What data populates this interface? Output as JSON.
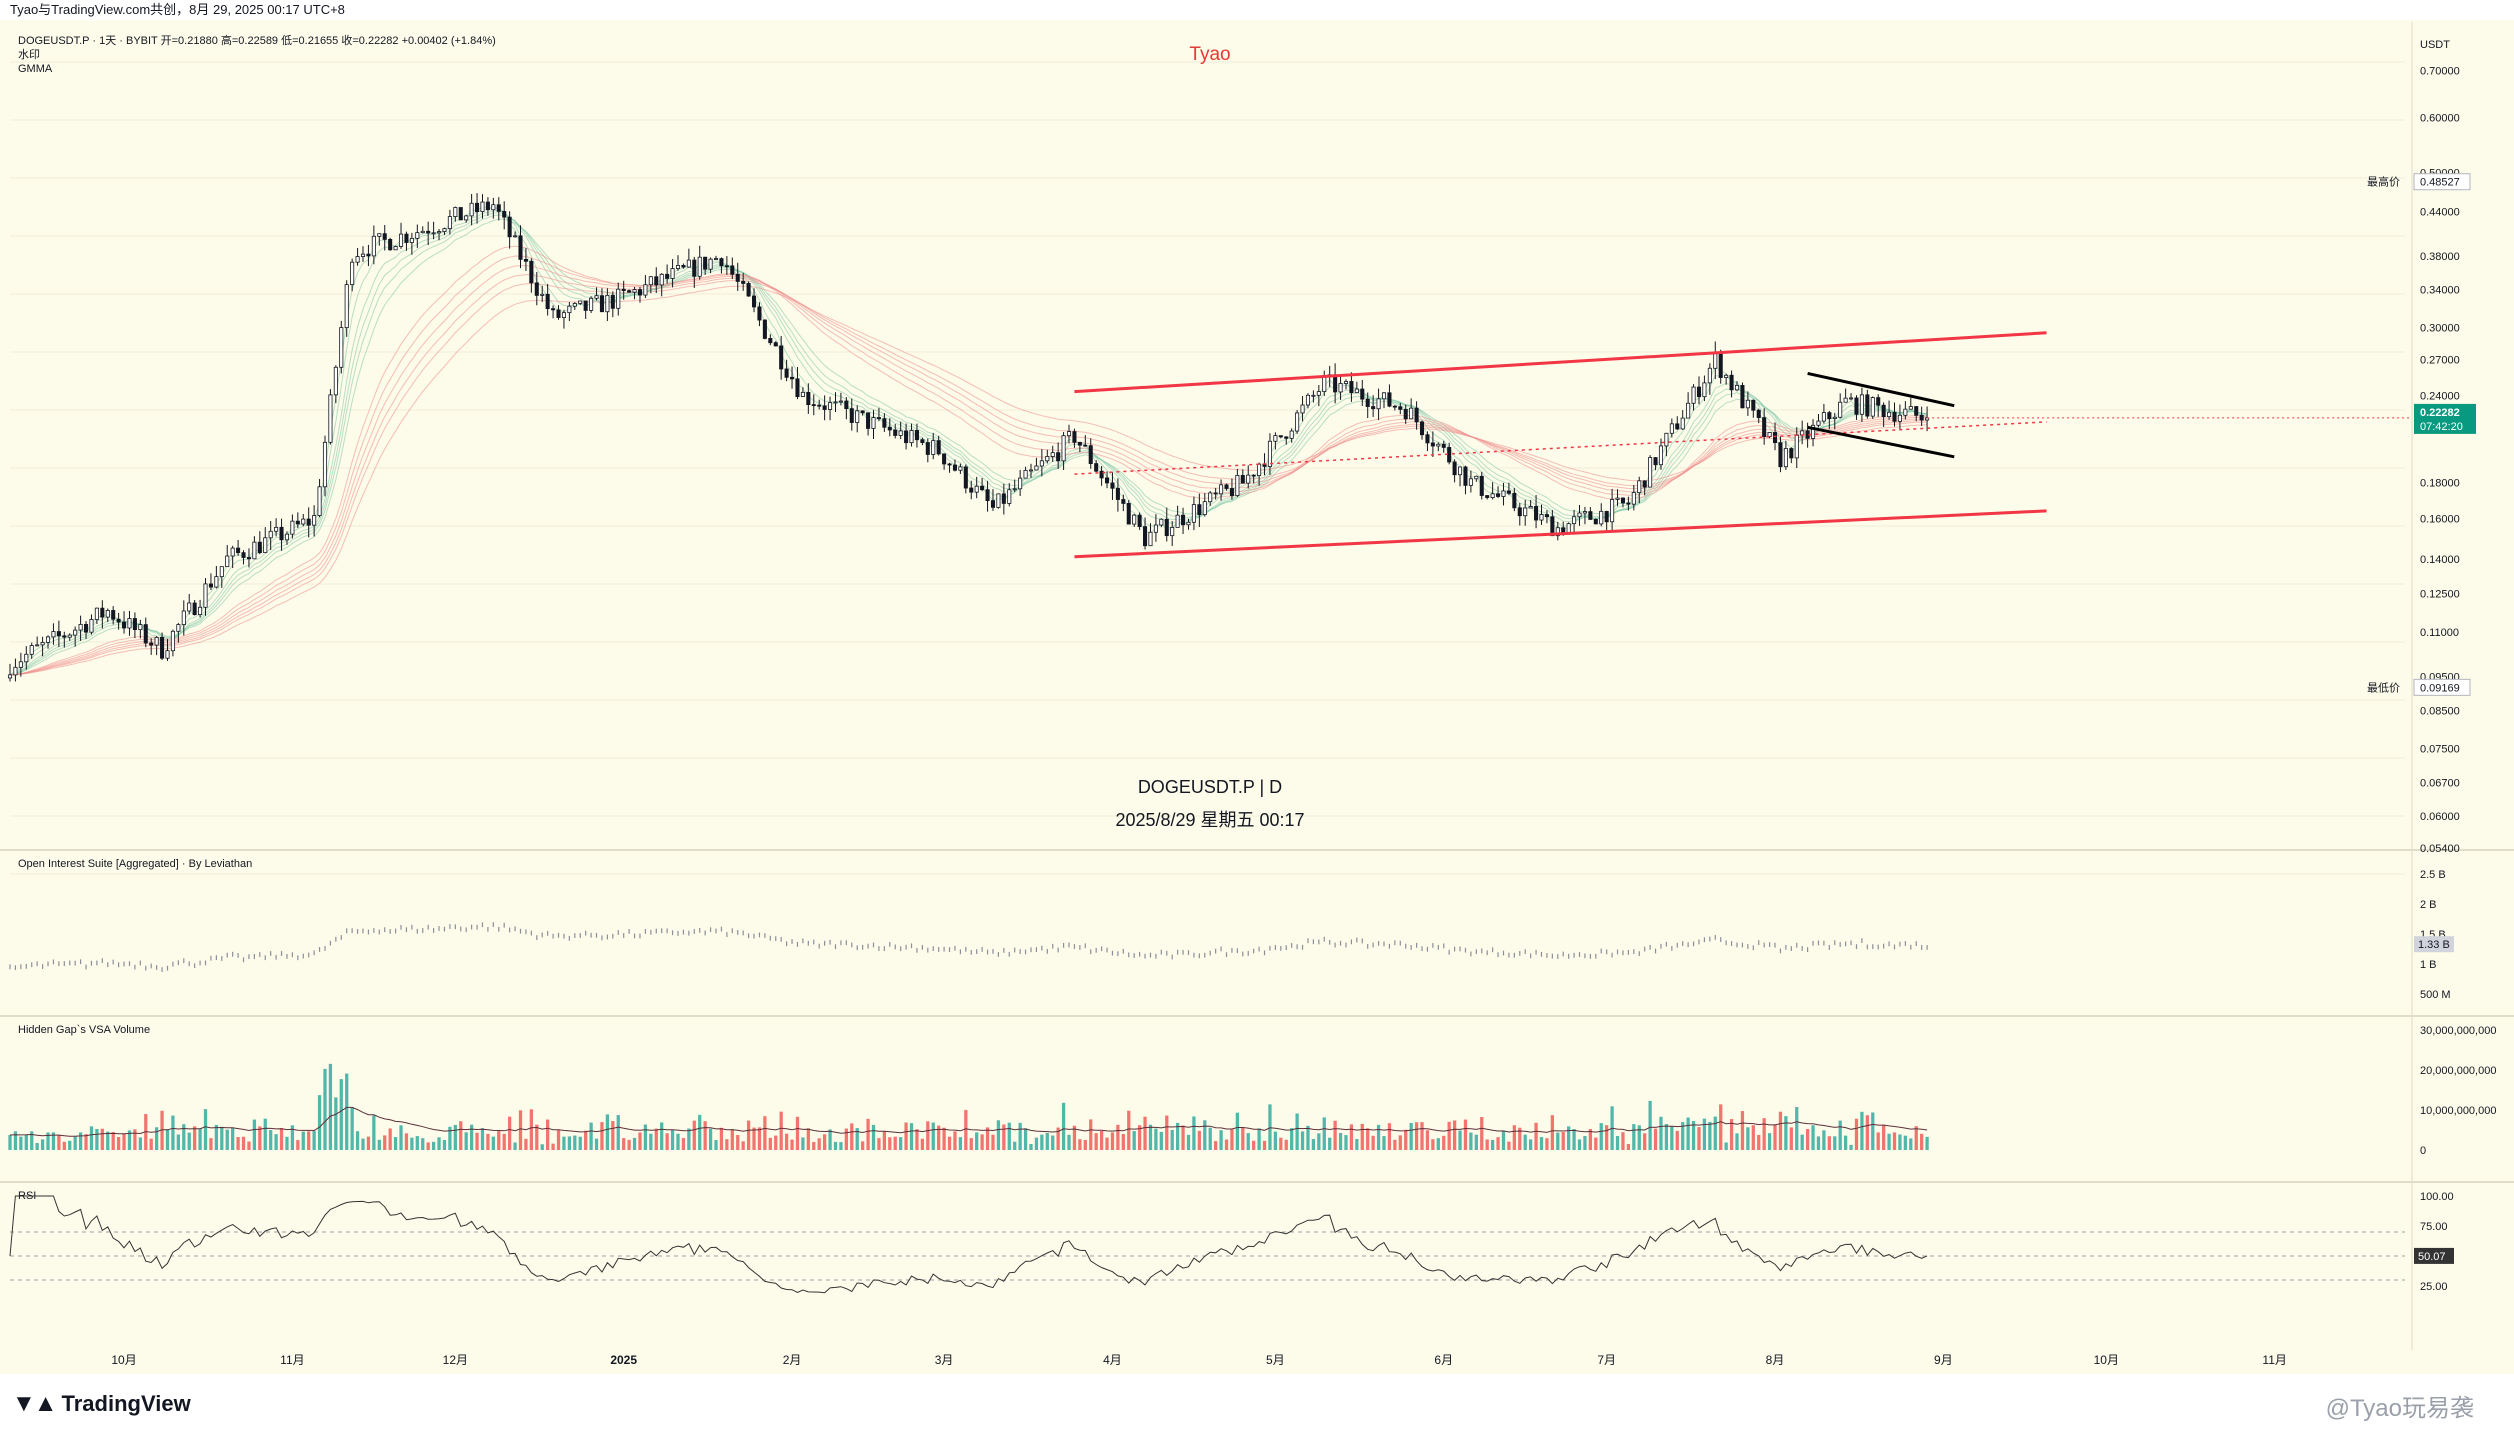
{
  "topbar": {
    "caption": "Tyao与TradingView.com共创，8月 29, 2025 00:17 UTC+8"
  },
  "header": {
    "symbol_line": "DOGEUSDT.P · 1天 · BYBIT  开=0.21880  高=0.22589  低=0.21655  收=0.22282  +0.00402 (+1.84%)",
    "indicator_1": "水印",
    "indicator_2": "GMMA",
    "author_tag": "Tyao"
  },
  "center_watermark": {
    "line1": "DOGEUSDT.P | D",
    "line2": "2025/8/29 星期五 00:17"
  },
  "price_axis": {
    "currency": "USDT",
    "ticks": [
      "0.70000",
      "0.60000",
      "0.50000",
      "0.44000",
      "0.38000",
      "0.34000",
      "0.30000",
      "0.27000",
      "0.24000",
      "0.18000",
      "0.16000",
      "0.14000",
      "0.12500",
      "0.11000",
      "0.09500",
      "0.08500",
      "0.07500",
      "0.06700",
      "0.06000",
      "0.05400"
    ],
    "high_label": "最高价",
    "high_value": "0.48527",
    "low_label": "最低价",
    "low_value": "0.09169",
    "last_price": "0.22282",
    "countdown": "07:42:20"
  },
  "time_axis": {
    "labels": [
      "10月",
      "11月",
      "12月",
      "2025",
      "2月",
      "3月",
      "4月",
      "5月",
      "6月",
      "7月",
      "8月",
      "9月",
      "10月",
      "11月"
    ]
  },
  "panes": {
    "oi": {
      "title": "Open Interest Suite [Aggregated] · By Leviathan",
      "ticks": [
        "2.5 B",
        "2 B",
        "1.5 B",
        "1 B",
        "500 M"
      ],
      "last": "1.33 B"
    },
    "vol": {
      "title": "Hidden Gap`s VSA Volume",
      "ticks": [
        "30,000,000,000",
        "20,000,000,000",
        "10,000,000,000",
        "0"
      ]
    },
    "rsi": {
      "title": "RSI",
      "ticks": [
        "100.00",
        "75.00",
        "25.00"
      ],
      "last": "50.07"
    }
  },
  "colors": {
    "up": "#26a69a",
    "down": "#ef5350",
    "channel": "#f23645",
    "accent": "#089981",
    "background": "#fdfbe9"
  },
  "footer": {
    "brand": "TradingView",
    "credit": "@Tyao玩易袭"
  },
  "chart_data": {
    "type": "candlestick",
    "symbol": "DOGEUSDT.P",
    "interval": "1D",
    "y_scale": "log",
    "ylim": [
      0.054,
      0.72
    ],
    "x_range": [
      "2024-09-10",
      "2025-11-25"
    ],
    "anchors": [
      {
        "date": "2024-09-10",
        "price": 0.099
      },
      {
        "date": "2024-09-28",
        "price": 0.118
      },
      {
        "date": "2024-10-08",
        "price": 0.104
      },
      {
        "date": "2024-10-20",
        "price": 0.14
      },
      {
        "date": "2024-10-31",
        "price": 0.153
      },
      {
        "date": "2024-11-05",
        "price": 0.16
      },
      {
        "date": "2024-11-12",
        "price": 0.385
      },
      {
        "date": "2024-11-23",
        "price": 0.41
      },
      {
        "date": "2024-12-08",
        "price": 0.45
      },
      {
        "date": "2024-12-19",
        "price": 0.31
      },
      {
        "date": "2024-12-31",
        "price": 0.33
      },
      {
        "date": "2025-01-19",
        "price": 0.38
      },
      {
        "date": "2025-02-03",
        "price": 0.24
      },
      {
        "date": "2025-02-28",
        "price": 0.2
      },
      {
        "date": "2025-03-10",
        "price": 0.165
      },
      {
        "date": "2025-03-25",
        "price": 0.21
      },
      {
        "date": "2025-04-07",
        "price": 0.15
      },
      {
        "date": "2025-04-25",
        "price": 0.18
      },
      {
        "date": "2025-05-10",
        "price": 0.25
      },
      {
        "date": "2025-05-25",
        "price": 0.23
      },
      {
        "date": "2025-06-06",
        "price": 0.18
      },
      {
        "date": "2025-06-22",
        "price": 0.155
      },
      {
        "date": "2025-07-05",
        "price": 0.168
      },
      {
        "date": "2025-07-21",
        "price": 0.27
      },
      {
        "date": "2025-08-02",
        "price": 0.195
      },
      {
        "date": "2025-08-14",
        "price": 0.235
      },
      {
        "date": "2025-08-29",
        "price": 0.2228
      }
    ],
    "channel": {
      "upper": [
        {
          "date": "2025-03-25",
          "price": 0.243
        },
        {
          "date": "2025-09-20",
          "price": 0.295
        }
      ],
      "lower": [
        {
          "date": "2025-03-25",
          "price": 0.141
        },
        {
          "date": "2025-09-20",
          "price": 0.164
        }
      ]
    },
    "flag": {
      "upper": [
        {
          "date": "2025-08-07",
          "price": 0.258
        },
        {
          "date": "2025-09-03",
          "price": 0.232
        }
      ],
      "lower": [
        {
          "date": "2025-08-07",
          "price": 0.216
        },
        {
          "date": "2025-09-03",
          "price": 0.196
        }
      ]
    },
    "series": [
      {
        "name": "GMMA"
      },
      {
        "name": "Open Interest",
        "last": 1330000000.0
      },
      {
        "name": "Hidden Gap`s VSA Volume"
      },
      {
        "name": "RSI",
        "last": 50.07
      }
    ]
  }
}
